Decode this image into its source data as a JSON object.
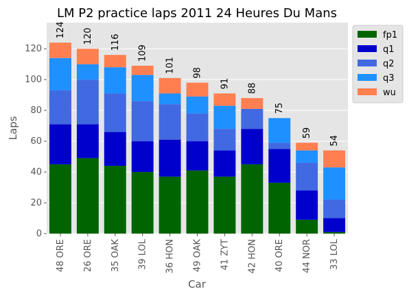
{
  "chart_data": {
    "type": "bar",
    "stacked": true,
    "title": "LM P2 practice laps 2011 24 Heures Du Mans",
    "xlabel": "Car",
    "ylabel": "Laps",
    "ylim": [
      0,
      137
    ],
    "yticks": [
      0,
      20,
      40,
      60,
      80,
      100,
      120
    ],
    "grid": true,
    "legend_position": "upper-right-outside",
    "categories": [
      "48 ORE",
      "26 ORE",
      "35 OAK",
      "39 LOL",
      "36 HON",
      "49 OAK",
      "41 ZYT",
      "42 HON",
      "40 ORE",
      "44 NOR",
      "33 LOL"
    ],
    "series": [
      {
        "name": "fp1",
        "color": "#006400",
        "values": [
          45,
          49,
          44,
          40,
          37,
          41,
          37,
          45,
          33,
          9,
          1
        ]
      },
      {
        "name": "q1",
        "color": "#0000CD",
        "values": [
          26,
          22,
          22,
          20,
          24,
          19,
          17,
          23,
          22,
          19,
          9
        ]
      },
      {
        "name": "q2",
        "color": "#4169E1",
        "values": [
          22,
          29,
          25,
          26,
          23,
          18,
          14,
          13,
          4,
          18,
          12
        ]
      },
      {
        "name": "q3",
        "color": "#1E90FF",
        "values": [
          21,
          10,
          17,
          17,
          7,
          11,
          15,
          0,
          16,
          8,
          21
        ]
      },
      {
        "name": "wu",
        "color": "#FF7F50",
        "values": [
          10,
          10,
          8,
          6,
          10,
          9,
          8,
          7,
          0,
          5,
          11
        ]
      }
    ],
    "totals": [
      "124",
      "120",
      "116",
      "109",
      "101",
      "98",
      "91",
      "88",
      "75",
      "59",
      "54"
    ]
  }
}
